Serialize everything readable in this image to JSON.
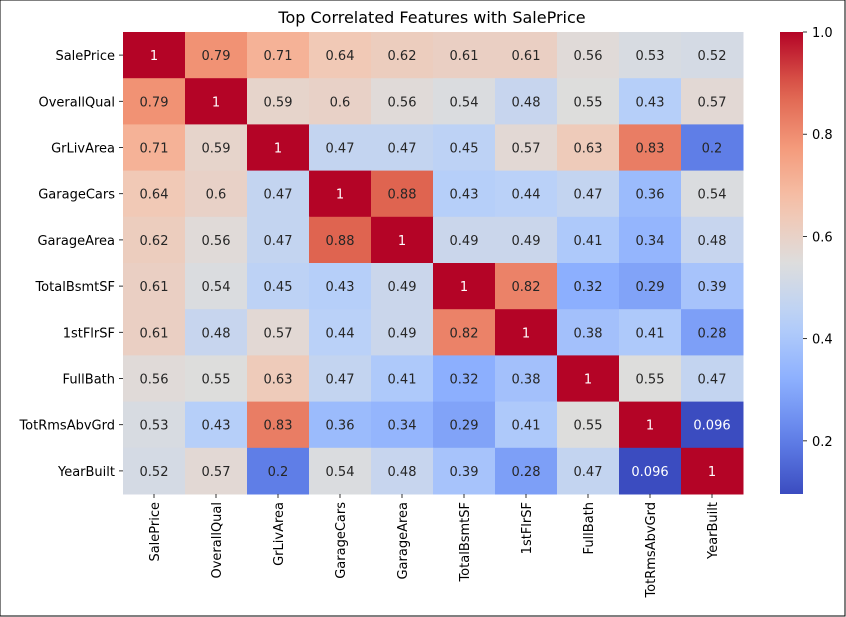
{
  "chart_data": {
    "type": "heatmap",
    "title": "Top Correlated Features with SalePrice",
    "labels": [
      "SalePrice",
      "OverallQual",
      "GrLivArea",
      "GarageCars",
      "GarageArea",
      "TotalBsmtSF",
      "1stFlrSF",
      "FullBath",
      "TotRmsAbvGrd",
      "YearBuilt"
    ],
    "matrix": [
      [
        1,
        0.79,
        0.71,
        0.64,
        0.62,
        0.61,
        0.61,
        0.56,
        0.53,
        0.52
      ],
      [
        0.79,
        1,
        0.59,
        0.6,
        0.56,
        0.54,
        0.48,
        0.55,
        0.43,
        0.57
      ],
      [
        0.71,
        0.59,
        1,
        0.47,
        0.47,
        0.45,
        0.57,
        0.63,
        0.83,
        0.2
      ],
      [
        0.64,
        0.6,
        0.47,
        1,
        0.88,
        0.43,
        0.44,
        0.47,
        0.36,
        0.54
      ],
      [
        0.62,
        0.56,
        0.47,
        0.88,
        1,
        0.49,
        0.49,
        0.41,
        0.34,
        0.48
      ],
      [
        0.61,
        0.54,
        0.45,
        0.43,
        0.49,
        1,
        0.82,
        0.32,
        0.29,
        0.39
      ],
      [
        0.61,
        0.48,
        0.57,
        0.44,
        0.49,
        0.82,
        1,
        0.38,
        0.41,
        0.28
      ],
      [
        0.56,
        0.55,
        0.63,
        0.47,
        0.41,
        0.32,
        0.38,
        1,
        0.55,
        0.47
      ],
      [
        0.53,
        0.43,
        0.83,
        0.36,
        0.34,
        0.29,
        0.41,
        0.55,
        1,
        0.096
      ],
      [
        0.52,
        0.57,
        0.2,
        0.54,
        0.48,
        0.39,
        0.28,
        0.47,
        0.096,
        1
      ]
    ],
    "colormap": "coolwarm",
    "vmin": 0.096,
    "vmax": 1.0,
    "colorbar_ticks": [
      0.2,
      0.4,
      0.6,
      0.8,
      1.0
    ],
    "colorbar_tick_labels": [
      "0.2",
      "0.4",
      "0.6",
      "0.8",
      "1.0"
    ],
    "annotations": true
  }
}
